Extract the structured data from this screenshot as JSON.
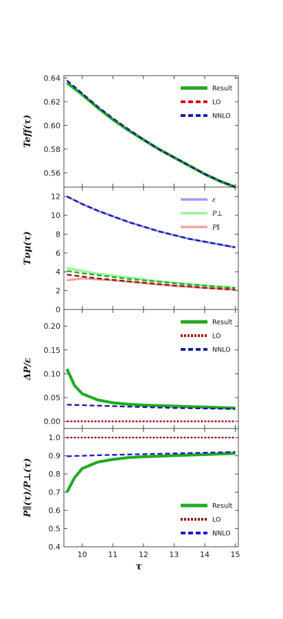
{
  "x_axis": {
    "label": "τ",
    "ticks": [
      "10",
      "11",
      "12",
      "13",
      "14",
      "15"
    ],
    "range": [
      9.4,
      15.1
    ]
  },
  "chart_data": [
    {
      "type": "line",
      "ylabel": "Teff(τ)",
      "ylim": [
        0.548,
        0.642
      ],
      "yticks": [
        "0.56",
        "0.58",
        "0.60",
        "0.62",
        "0.64"
      ],
      "x": [
        9.5,
        10,
        10.5,
        11,
        11.5,
        12,
        12.5,
        13,
        13.5,
        14,
        14.5,
        15
      ],
      "series": [
        {
          "name": "Result",
          "color": "#22aa22",
          "style": "solid",
          "values": [
            0.636,
            0.626,
            0.615,
            0.605,
            0.596,
            0.588,
            0.58,
            0.573,
            0.566,
            0.559,
            0.553,
            0.548
          ]
        },
        {
          "name": "LO",
          "color": "#dd1111",
          "style": "dashed",
          "values": [
            0.638,
            0.627,
            0.616,
            0.606,
            0.597,
            0.588,
            0.58,
            0.573,
            0.566,
            0.559,
            0.553,
            0.548
          ]
        },
        {
          "name": "NNLO",
          "color": "#1a1aa0",
          "style": "dashed",
          "values": [
            0.638,
            0.627,
            0.616,
            0.606,
            0.597,
            0.588,
            0.58,
            0.573,
            0.566,
            0.559,
            0.553,
            0.548
          ]
        }
      ],
      "legend": "top-right"
    },
    {
      "type": "line",
      "ylabel": "Tνμ(τ)",
      "ylim": [
        0,
        13
      ],
      "yticks": [
        "0",
        "2",
        "4",
        "6",
        "8",
        "10",
        "12"
      ],
      "x": [
        9.5,
        10,
        10.5,
        11,
        11.5,
        12,
        12.5,
        13,
        13.5,
        14,
        14.5,
        15
      ],
      "series": [
        {
          "name": "ε",
          "color": "#8888ee",
          "style": "solid",
          "values": [
            12.0,
            11.2,
            10.5,
            9.9,
            9.3,
            8.8,
            8.3,
            7.9,
            7.5,
            7.2,
            6.9,
            6.6
          ]
        },
        {
          "name": "P⊥",
          "color": "#88ee88",
          "style": "solid",
          "values": [
            4.4,
            4.1,
            3.8,
            3.6,
            3.4,
            3.2,
            3.0,
            2.85,
            2.7,
            2.55,
            2.45,
            2.3
          ]
        },
        {
          "name": "P∥",
          "color": "#f09090",
          "style": "solid",
          "values": [
            3.1,
            3.3,
            3.2,
            3.1,
            2.95,
            2.8,
            2.65,
            2.5,
            2.4,
            2.3,
            2.2,
            2.1
          ]
        },
        {
          "name": "ε (dashed)",
          "color": "#1a1aa0",
          "style": "dashed",
          "values": [
            12.0,
            11.2,
            10.5,
            9.9,
            9.3,
            8.8,
            8.3,
            7.9,
            7.5,
            7.2,
            6.9,
            6.6
          ]
        },
        {
          "name": "P⊥ (dashed)",
          "color": "#22aa22",
          "style": "dashed",
          "values": [
            4.1,
            3.85,
            3.65,
            3.45,
            3.25,
            3.1,
            2.95,
            2.8,
            2.65,
            2.55,
            2.4,
            2.3
          ]
        },
        {
          "name": "P∥ (dashed)",
          "color": "#8b1a1a",
          "style": "dashed",
          "values": [
            3.7,
            3.5,
            3.3,
            3.15,
            3.0,
            2.85,
            2.7,
            2.55,
            2.45,
            2.3,
            2.2,
            2.1
          ]
        }
      ],
      "legend": "top-right"
    },
    {
      "type": "line",
      "ylabel": "ΔP/ε",
      "ylim": [
        -0.015,
        0.235
      ],
      "yticks": [
        "0.00",
        "0.05",
        "0.10",
        "0.15",
        "0.20"
      ],
      "x": [
        9.5,
        9.75,
        10,
        10.5,
        11,
        11.5,
        12,
        12.5,
        13,
        13.5,
        14,
        14.5,
        15
      ],
      "series": [
        {
          "name": "Result",
          "color": "#22aa22",
          "style": "solid",
          "values": [
            0.11,
            0.075,
            0.058,
            0.045,
            0.039,
            0.036,
            0.034,
            0.033,
            0.032,
            0.031,
            0.03,
            0.029,
            0.028
          ]
        },
        {
          "name": "LO",
          "color": "#aa1111",
          "style": "dotted",
          "values": [
            0,
            0,
            0,
            0,
            0,
            0,
            0,
            0,
            0,
            0,
            0,
            0,
            0
          ]
        },
        {
          "name": "NNLO",
          "color": "#1a1aa0",
          "style": "dashed",
          "values": [
            0.035,
            0.0345,
            0.034,
            0.033,
            0.032,
            0.031,
            0.03,
            0.029,
            0.028,
            0.0275,
            0.027,
            0.0265,
            0.026
          ]
        }
      ],
      "legend": "top-right"
    },
    {
      "type": "line",
      "ylabel": "P∥(τ)/P⊥(τ)",
      "ylim": [
        0.4,
        1.05
      ],
      "yticks": [
        "0.4",
        "0.5",
        "0.6",
        "0.7",
        "0.8",
        "0.9",
        "1.0"
      ],
      "x": [
        9.5,
        9.75,
        10,
        10.5,
        11,
        11.5,
        12,
        12.5,
        13,
        13.5,
        14,
        14.5,
        15
      ],
      "series": [
        {
          "name": "Result",
          "color": "#22aa22",
          "style": "solid",
          "values": [
            0.7,
            0.78,
            0.83,
            0.865,
            0.88,
            0.89,
            0.895,
            0.898,
            0.901,
            0.904,
            0.907,
            0.91,
            0.913
          ]
        },
        {
          "name": "LO",
          "color": "#8b1a1a",
          "style": "dotted",
          "values": [
            1,
            1,
            1,
            1,
            1,
            1,
            1,
            1,
            1,
            1,
            1,
            1,
            1
          ]
        },
        {
          "name": "NNLO",
          "color": "#1a1acc",
          "style": "dashed",
          "values": [
            0.897,
            0.899,
            0.9,
            0.903,
            0.905,
            0.907,
            0.909,
            0.911,
            0.913,
            0.915,
            0.917,
            0.919,
            0.921
          ]
        }
      ],
      "legend": "bottom-right"
    }
  ]
}
